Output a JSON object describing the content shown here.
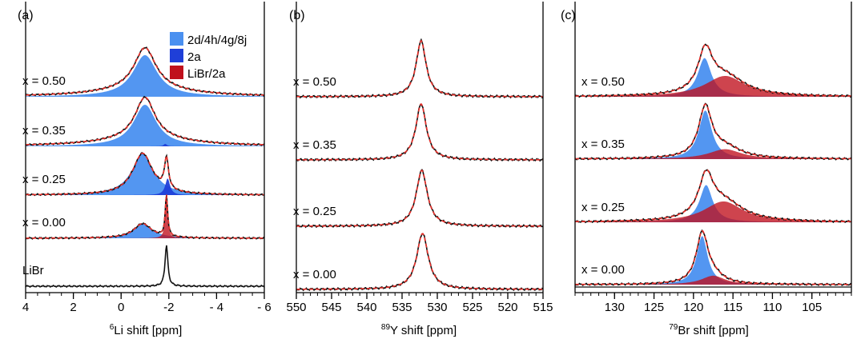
{
  "figure": {
    "panel_count": 3
  },
  "chart_data": [
    {
      "type": "line",
      "panel_label": "(a)",
      "xlabel_sup": "6",
      "xlabel": "Li shift [ppm]",
      "xlim": [
        4,
        -6
      ],
      "x_ticks": [
        {
          "value": 4,
          "label": "4"
        },
        {
          "value": 2,
          "label": "2"
        },
        {
          "value": 0,
          "label": "0"
        },
        {
          "value": -2,
          "label": "-2"
        },
        {
          "value": -4,
          "label": "- 4"
        },
        {
          "value": -6,
          "label": "- 6"
        }
      ],
      "legend": [
        {
          "name": "2d/4h/4g/8j",
          "color": "#4a90f0"
        },
        {
          "name": "2a",
          "color": "#1f3fd8"
        },
        {
          "name": "LiBr/2a",
          "color": "#c0101c"
        }
      ],
      "series": [
        {
          "name": "x = 0.50",
          "spectrum": [
            {
              "center": -1.0,
              "width": 0.55,
              "height": 1.0
            },
            {
              "center": -1.0,
              "width": 2.2,
              "height": 0.18
            }
          ],
          "components": [
            {
              "legend": "2d/4h/4g/8j",
              "center": -1.0,
              "width": 0.62,
              "height": 1.0
            }
          ]
        },
        {
          "name": "x = 0.35",
          "spectrum": [
            {
              "center": -1.0,
              "width": 0.5,
              "height": 1.0
            },
            {
              "center": -1.0,
              "width": 2.2,
              "height": 0.18
            }
          ],
          "components": [
            {
              "legend": "2d/4h/4g/8j",
              "center": -1.0,
              "width": 0.58,
              "height": 1.0
            },
            {
              "legend": "2a",
              "center": -1.85,
              "width": 0.08,
              "height": 0.06
            }
          ]
        },
        {
          "name": "x = 0.25",
          "spectrum": [
            {
              "center": -0.9,
              "width": 0.5,
              "height": 1.0
            },
            {
              "center": -1.9,
              "width": 0.1,
              "height": 0.75
            }
          ],
          "components": [
            {
              "legend": "2d/4h/4g/8j",
              "center": -0.9,
              "width": 0.55,
              "height": 1.0
            },
            {
              "legend": "2a",
              "center": -1.95,
              "width": 0.12,
              "height": 0.4
            }
          ]
        },
        {
          "name": "x = 0.00",
          "spectrum": [
            {
              "center": -0.9,
              "width": 0.45,
              "height": 0.35
            },
            {
              "center": -1.9,
              "width": 0.06,
              "height": 1.0
            }
          ],
          "components": [
            {
              "legend": "2d/4h/4g/8j",
              "center": -0.9,
              "width": 0.5,
              "height": 0.35
            },
            {
              "legend": "LiBr/2a",
              "center": -1.9,
              "width": 0.06,
              "height": 1.0
            }
          ]
        },
        {
          "name": "LiBr",
          "spectrum": [
            {
              "center": -1.9,
              "width": 0.07,
              "height": 1.0
            }
          ],
          "components": []
        }
      ]
    },
    {
      "type": "line",
      "panel_label": "(b)",
      "xlabel_sup": "89",
      "xlabel": "Y shift [ppm]",
      "xlim": [
        550,
        515
      ],
      "x_ticks": [
        {
          "value": 550,
          "label": "550"
        },
        {
          "value": 545,
          "label": "545"
        },
        {
          "value": 540,
          "label": "540"
        },
        {
          "value": 535,
          "label": "535"
        },
        {
          "value": 530,
          "label": "530"
        },
        {
          "value": 525,
          "label": "525"
        },
        {
          "value": 520,
          "label": "520"
        },
        {
          "value": 515,
          "label": "515"
        }
      ],
      "series": [
        {
          "name": "x = 0.50",
          "spectrum": [
            {
              "center": 532.3,
              "width": 0.85,
              "height": 1.0
            }
          ]
        },
        {
          "name": "x = 0.35",
          "spectrum": [
            {
              "center": 532.3,
              "width": 0.9,
              "height": 1.0
            }
          ]
        },
        {
          "name": "x = 0.25",
          "spectrum": [
            {
              "center": 532.2,
              "width": 0.95,
              "height": 1.0
            }
          ]
        },
        {
          "name": "x = 0.00",
          "spectrum": [
            {
              "center": 532.1,
              "width": 1.0,
              "height": 1.0
            }
          ]
        }
      ]
    },
    {
      "type": "line",
      "panel_label": "(c)",
      "xlabel_sup": "79",
      "xlabel": "Br shift [ppm]",
      "xlim": [
        135,
        100
      ],
      "x_ticks": [
        {
          "value": 130,
          "label": "130"
        },
        {
          "value": 125,
          "label": "125"
        },
        {
          "value": 120,
          "label": "120"
        },
        {
          "value": 115,
          "label": "115"
        },
        {
          "value": 110,
          "label": "110"
        },
        {
          "value": 105,
          "label": "105"
        }
      ],
      "series": [
        {
          "name": "x = 0.50",
          "spectrum": [
            {
              "center": 118.5,
              "width": 1.1,
              "height": 0.82
            },
            {
              "center": 116.0,
              "width": 3.0,
              "height": 0.4
            }
          ],
          "components": [
            {
              "legend": "2d/4h/4g/8j",
              "center": 118.6,
              "width": 1.05,
              "height": 0.78
            },
            {
              "legend": "LiBr/2a",
              "center": 116.0,
              "width": 3.1,
              "height": 0.42
            }
          ]
        },
        {
          "name": "x = 0.35",
          "spectrum": [
            {
              "center": 118.5,
              "width": 1.0,
              "height": 1.0
            },
            {
              "center": 116.0,
              "width": 2.5,
              "height": 0.22
            }
          ],
          "components": [
            {
              "legend": "2d/4h/4g/8j",
              "center": 118.5,
              "width": 1.0,
              "height": 0.98
            },
            {
              "legend": "LiBr/2a",
              "center": 116.0,
              "width": 2.5,
              "height": 0.2
            }
          ]
        },
        {
          "name": "x = 0.25",
          "spectrum": [
            {
              "center": 118.4,
              "width": 1.1,
              "height": 0.8
            },
            {
              "center": 116.2,
              "width": 3.0,
              "height": 0.4
            }
          ],
          "components": [
            {
              "legend": "2d/4h/4g/8j",
              "center": 118.4,
              "width": 1.0,
              "height": 0.75
            },
            {
              "legend": "LiBr/2a",
              "center": 116.2,
              "width": 3.0,
              "height": 0.42
            }
          ]
        },
        {
          "name": "x = 0.00",
          "spectrum": [
            {
              "center": 118.9,
              "width": 0.9,
              "height": 1.0
            },
            {
              "center": 117.5,
              "width": 1.6,
              "height": 0.15
            }
          ],
          "components": [
            {
              "legend": "2d/4h/4g/8j",
              "center": 118.9,
              "width": 0.85,
              "height": 0.98
            },
            {
              "legend": "LiBr/2a",
              "center": 117.5,
              "width": 1.8,
              "height": 0.18
            }
          ]
        }
      ]
    }
  ]
}
